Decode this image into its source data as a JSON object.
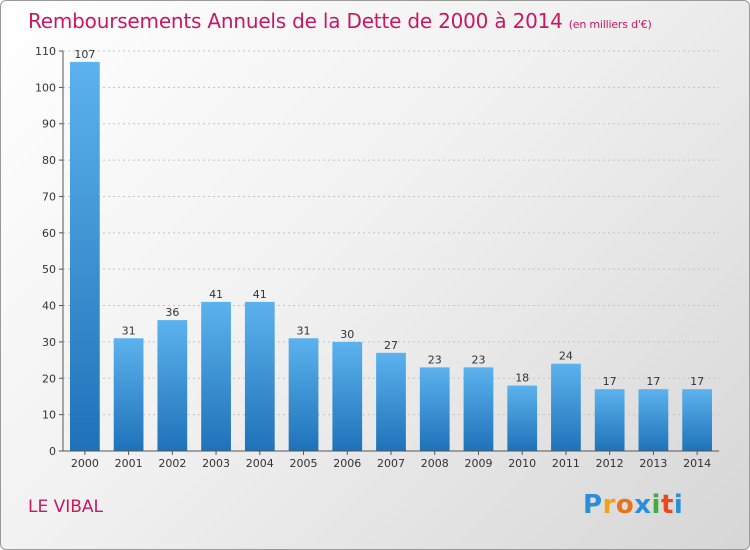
{
  "title": "Remboursements Annuels de la Dette de 2000 à 2014",
  "unit_note": "(en milliers d'€)",
  "commune": "LE VIBAL",
  "logo": {
    "letters": [
      "P",
      "r",
      "o",
      "x",
      "i",
      "t",
      "i"
    ],
    "colors": [
      "#2a8fd8",
      "#f0a21a",
      "#e8731b",
      "#2a8fd8",
      "#3dae3a",
      "#e84a1b",
      "#2a8fd8"
    ]
  },
  "colors": {
    "accent": "#c8185e",
    "bar_top": "#5cb2ee",
    "bar_bottom": "#1f72b8"
  },
  "chart_data": {
    "type": "bar",
    "categories": [
      "2000",
      "2001",
      "2002",
      "2003",
      "2004",
      "2005",
      "2006",
      "2007",
      "2008",
      "2009",
      "2010",
      "2011",
      "2012",
      "2013",
      "2014"
    ],
    "values": [
      107,
      31,
      36,
      41,
      41,
      31,
      30,
      27,
      23,
      23,
      18,
      24,
      17,
      17,
      17
    ],
    "yticks": [
      0,
      10,
      20,
      30,
      40,
      50,
      60,
      70,
      80,
      90,
      100,
      110
    ],
    "ylim": [
      0,
      110
    ],
    "grid": true,
    "data_labels": true
  }
}
